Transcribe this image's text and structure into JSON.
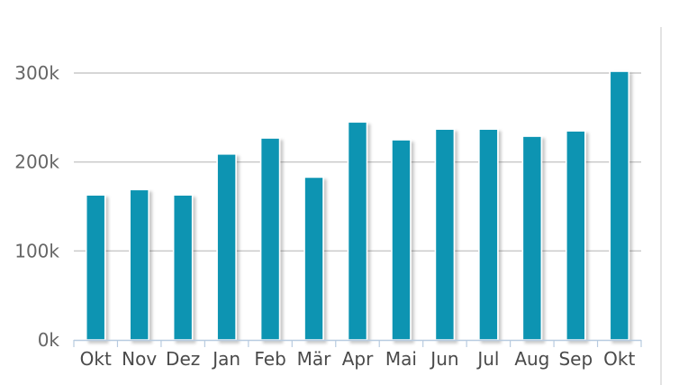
{
  "chart_data": {
    "type": "bar",
    "title": "",
    "xlabel": "",
    "ylabel": "",
    "categories": [
      "Okt",
      "Nov",
      "Dez",
      "Jan",
      "Feb",
      "Mär",
      "Apr",
      "Mai",
      "Jun",
      "Jul",
      "Aug",
      "Sep",
      "Okt"
    ],
    "values": [
      163000,
      169000,
      163000,
      209000,
      227000,
      183000,
      245000,
      225000,
      237000,
      237000,
      229000,
      235000,
      302000
    ],
    "ylim": [
      0,
      300000
    ],
    "yticks": [
      0,
      100000,
      200000,
      300000
    ],
    "ytick_labels": [
      "0k",
      "100k",
      "200k",
      "300k"
    ],
    "grid": true,
    "legend": "none",
    "bar_color": "#0894b2"
  }
}
